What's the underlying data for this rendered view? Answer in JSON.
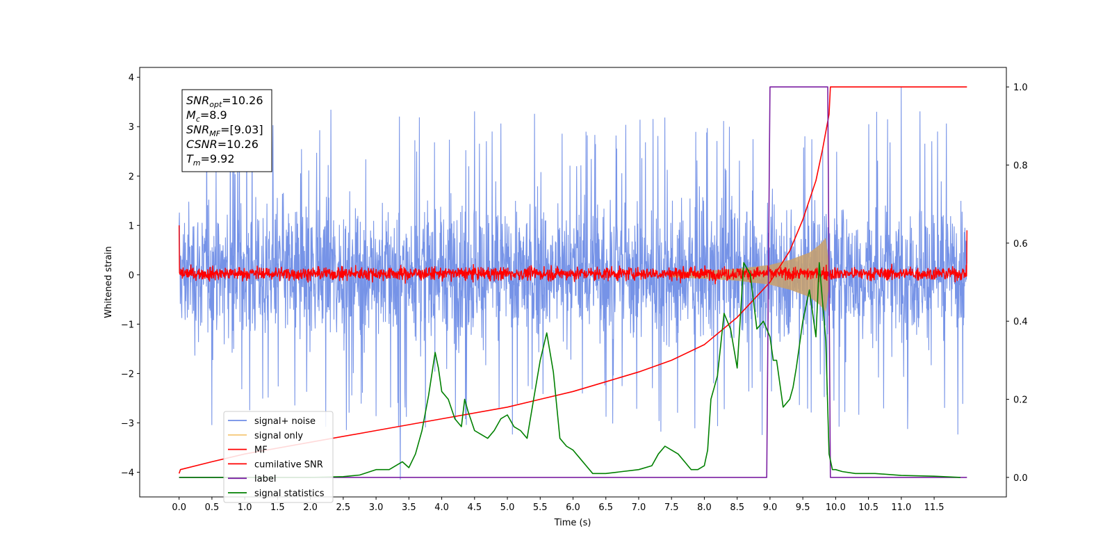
{
  "chart_data": {
    "type": "line",
    "xlabel": "Time (s)",
    "ylabel": "Whitened strain",
    "xlim": [
      -0.6,
      12.6
    ],
    "ylim": [
      -4.5,
      4.2
    ],
    "ylim_right": [
      -0.05,
      1.05
    ],
    "x_ticks": [
      0.0,
      0.5,
      1.0,
      1.5,
      2.0,
      2.5,
      3.0,
      3.5,
      4.0,
      4.5,
      5.0,
      5.5,
      6.0,
      6.5,
      7.0,
      7.5,
      8.0,
      8.5,
      9.0,
      9.5,
      10.0,
      10.5,
      11.0,
      11.5
    ],
    "x_tick_labels": [
      "0.0",
      "0.5",
      "1.0",
      "1.5",
      "2.0",
      "2.5",
      "3.0",
      "3.5",
      "4.0",
      "4.5",
      "5.0",
      "5.5",
      "6.0",
      "6.5",
      "7.0",
      "7.5",
      "8.0",
      "8.5",
      "9.0",
      "9.5",
      "10.0",
      "10.5",
      "11.0",
      "11.5"
    ],
    "y_ticks": [
      -4,
      -3,
      -2,
      -1,
      0,
      1,
      2,
      3,
      4
    ],
    "y_tick_labels": [
      "−4",
      "−3",
      "−2",
      "−1",
      "0",
      "1",
      "2",
      "3",
      "4"
    ],
    "y_right_ticks": [
      0.0,
      0.2,
      0.4,
      0.6,
      0.8,
      1.0
    ],
    "y_right_tick_labels": [
      "0.0",
      "0.2",
      "0.4",
      "0.6",
      "0.8",
      "1.0"
    ],
    "legend_position": "lower-left",
    "annotation_lines": [
      {
        "sym": "SNR",
        "sub": "opt",
        "rest": "=10.26"
      },
      {
        "sym": "M",
        "sub": "c",
        "rest": "=8.9"
      },
      {
        "sym": "SNR",
        "sub": "MF",
        "rest": "=[9.03]"
      },
      {
        "sym": "CSNR",
        "sub": "",
        "rest": "=10.26"
      },
      {
        "sym": "T",
        "sub": "m",
        "rest": "=9.92"
      }
    ],
    "series": [
      {
        "name": "signal+ noise",
        "color": "#6f8de6",
        "axis": "left",
        "kind": "noise-band",
        "x_range": [
          0.0,
          12.0
        ],
        "envelope_typical": [
          -1.2,
          1.3
        ],
        "extremes": {
          "max": 3.8,
          "max_at": 11.0,
          "min": -4.15,
          "min_at": 3.37
        }
      },
      {
        "name": "signal only",
        "color": "#f5c97a",
        "axis": "left",
        "kind": "chirp-envelope",
        "x": [
          7.5,
          8.0,
          8.5,
          9.0,
          9.3,
          9.6,
          9.75,
          9.85,
          9.92
        ],
        "amplitude": [
          0.05,
          0.08,
          0.12,
          0.2,
          0.3,
          0.45,
          0.6,
          0.75,
          0.0
        ]
      },
      {
        "name": "MF",
        "color": "#ff0000",
        "axis": "left",
        "kind": "noise-band",
        "x_range": [
          0.0,
          12.0
        ],
        "envelope_typical": [
          -0.15,
          0.2
        ],
        "edge_values": {
          "start": 1.0,
          "end": 0.9
        }
      },
      {
        "name": "cumilative SNR",
        "color": "#ff0000",
        "axis": "right",
        "kind": "line",
        "x": [
          0.0,
          0.02,
          0.5,
          1.0,
          2.0,
          3.0,
          4.0,
          5.0,
          5.5,
          6.0,
          6.5,
          7.0,
          7.5,
          8.0,
          8.5,
          9.0,
          9.3,
          9.5,
          9.7,
          9.8,
          9.9,
          9.92,
          12.0
        ],
        "values": [
          0.01,
          0.02,
          0.04,
          0.06,
          0.09,
          0.12,
          0.15,
          0.18,
          0.2,
          0.22,
          0.245,
          0.27,
          0.3,
          0.34,
          0.41,
          0.5,
          0.58,
          0.66,
          0.76,
          0.84,
          0.93,
          1.0,
          1.0
        ]
      },
      {
        "name": "label",
        "color": "#7b1fa2",
        "axis": "right",
        "kind": "line",
        "x": [
          0.0,
          8.95,
          9.0,
          9.88,
          9.92,
          12.0
        ],
        "values": [
          0.0,
          0.0,
          1.0,
          1.0,
          0.0,
          0.0
        ]
      },
      {
        "name": "signal statistics",
        "color": "#008000",
        "axis": "right",
        "kind": "line",
        "x": [
          0.0,
          1.0,
          2.0,
          2.5,
          2.75,
          3.0,
          3.1,
          3.2,
          3.4,
          3.5,
          3.6,
          3.7,
          3.8,
          3.9,
          3.95,
          4.0,
          4.1,
          4.2,
          4.3,
          4.35,
          4.4,
          4.5,
          4.6,
          4.7,
          4.8,
          4.9,
          5.0,
          5.1,
          5.2,
          5.3,
          5.4,
          5.5,
          5.6,
          5.7,
          5.8,
          5.9,
          6.0,
          6.1,
          6.2,
          6.3,
          6.5,
          7.0,
          7.2,
          7.3,
          7.4,
          7.5,
          7.6,
          7.7,
          7.8,
          7.9,
          8.0,
          8.05,
          8.1,
          8.2,
          8.3,
          8.4,
          8.5,
          8.6,
          8.7,
          8.75,
          8.8,
          8.9,
          9.0,
          9.05,
          9.1,
          9.2,
          9.3,
          9.35,
          9.4,
          9.5,
          9.6,
          9.7,
          9.75,
          9.8,
          9.85,
          9.9,
          9.95,
          10.0,
          10.1,
          10.3,
          10.6,
          11.0,
          11.5,
          11.9
        ],
        "values": [
          0.0,
          0.0,
          0.0,
          0.002,
          0.006,
          0.02,
          0.02,
          0.02,
          0.04,
          0.025,
          0.06,
          0.12,
          0.21,
          0.32,
          0.28,
          0.22,
          0.2,
          0.15,
          0.13,
          0.2,
          0.17,
          0.12,
          0.11,
          0.1,
          0.12,
          0.15,
          0.16,
          0.13,
          0.12,
          0.1,
          0.2,
          0.3,
          0.37,
          0.27,
          0.1,
          0.08,
          0.07,
          0.05,
          0.03,
          0.01,
          0.01,
          0.02,
          0.03,
          0.06,
          0.08,
          0.07,
          0.06,
          0.04,
          0.02,
          0.02,
          0.03,
          0.07,
          0.2,
          0.26,
          0.42,
          0.38,
          0.28,
          0.55,
          0.52,
          0.45,
          0.38,
          0.4,
          0.36,
          0.3,
          0.3,
          0.18,
          0.2,
          0.23,
          0.28,
          0.4,
          0.48,
          0.36,
          0.55,
          0.45,
          0.35,
          0.06,
          0.02,
          0.02,
          0.015,
          0.01,
          0.01,
          0.005,
          0.003,
          0.0
        ]
      }
    ]
  }
}
